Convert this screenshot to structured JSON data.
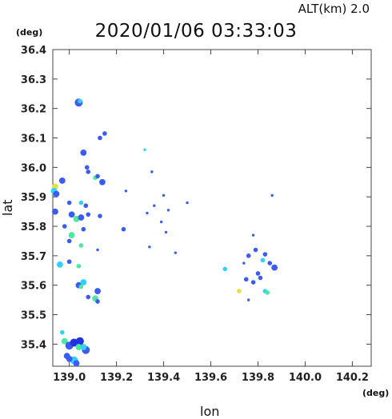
{
  "header": {
    "altitude_label": "ALT(km)  2.0",
    "timestamp": "2020/01/06 03:33:03"
  },
  "axes": {
    "y_unit": "(deg)",
    "x_unit": "(deg)",
    "xlabel": "lon",
    "ylabel": "lat"
  },
  "chart_data": {
    "type": "scatter",
    "title": "2020/01/06 03:33:03",
    "xlabel": "lon",
    "ylabel": "lat",
    "xlim": [
      138.93,
      140.28
    ],
    "ylim": [
      35.325,
      36.4
    ],
    "x_ticks": [
      "139.0",
      "139.2",
      "139.4",
      "139.6",
      "139.8",
      "140.0",
      "140.2"
    ],
    "y_ticks": [
      "35.4",
      "35.5",
      "35.6",
      "35.7",
      "35.8",
      "35.9",
      "36.0",
      "36.1",
      "36.2",
      "36.3",
      "36.4"
    ],
    "grid": false,
    "colors": {
      "blue": "#3a5cf0",
      "dark_blue": "#2233dd",
      "cyan": "#30d0ff",
      "green": "#50e8a0",
      "yellow": "#e8e040"
    },
    "points": [
      {
        "lon": 139.04,
        "lat": 36.22,
        "c": "blue",
        "s": 4
      },
      {
        "lon": 139.045,
        "lat": 36.225,
        "c": "cyan",
        "s": 2
      },
      {
        "lon": 139.13,
        "lat": 36.1,
        "c": "blue",
        "s": 2
      },
      {
        "lon": 139.15,
        "lat": 36.115,
        "c": "blue",
        "s": 2
      },
      {
        "lon": 139.06,
        "lat": 36.05,
        "c": "blue",
        "s": 3
      },
      {
        "lon": 139.32,
        "lat": 36.06,
        "c": "cyan",
        "s": 1
      },
      {
        "lon": 139.075,
        "lat": 36.0,
        "c": "blue",
        "s": 2
      },
      {
        "lon": 139.08,
        "lat": 35.985,
        "c": "blue",
        "s": 2
      },
      {
        "lon": 139.11,
        "lat": 35.965,
        "c": "green",
        "s": 2
      },
      {
        "lon": 139.12,
        "lat": 35.97,
        "c": "blue",
        "s": 2
      },
      {
        "lon": 139.14,
        "lat": 35.95,
        "c": "blue",
        "s": 3
      },
      {
        "lon": 139.35,
        "lat": 35.985,
        "c": "blue",
        "s": 1
      },
      {
        "lon": 138.97,
        "lat": 35.955,
        "c": "blue",
        "s": 3
      },
      {
        "lon": 138.94,
        "lat": 35.935,
        "c": "yellow",
        "s": 3
      },
      {
        "lon": 138.935,
        "lat": 35.92,
        "c": "cyan",
        "s": 3
      },
      {
        "lon": 138.945,
        "lat": 35.91,
        "c": "blue",
        "s": 3
      },
      {
        "lon": 138.94,
        "lat": 35.85,
        "c": "blue",
        "s": 3
      },
      {
        "lon": 139.0,
        "lat": 35.88,
        "c": "blue",
        "s": 2
      },
      {
        "lon": 139.05,
        "lat": 35.88,
        "c": "cyan",
        "s": 2
      },
      {
        "lon": 139.07,
        "lat": 35.87,
        "c": "blue",
        "s": 2
      },
      {
        "lon": 139.24,
        "lat": 35.92,
        "c": "blue",
        "s": 1
      },
      {
        "lon": 139.4,
        "lat": 35.905,
        "c": "blue",
        "s": 1
      },
      {
        "lon": 139.5,
        "lat": 35.88,
        "c": "blue",
        "s": 1
      },
      {
        "lon": 139.86,
        "lat": 35.905,
        "c": "blue",
        "s": 1
      },
      {
        "lon": 139.01,
        "lat": 35.84,
        "c": "blue",
        "s": 3
      },
      {
        "lon": 139.03,
        "lat": 35.825,
        "c": "green",
        "s": 3
      },
      {
        "lon": 139.05,
        "lat": 35.83,
        "c": "blue",
        "s": 3
      },
      {
        "lon": 139.08,
        "lat": 35.84,
        "c": "blue",
        "s": 2
      },
      {
        "lon": 139.13,
        "lat": 35.835,
        "c": "blue",
        "s": 2
      },
      {
        "lon": 138.98,
        "lat": 35.8,
        "c": "blue",
        "s": 2
      },
      {
        "lon": 139.01,
        "lat": 35.77,
        "c": "green",
        "s": 3
      },
      {
        "lon": 139.06,
        "lat": 35.79,
        "c": "blue",
        "s": 2
      },
      {
        "lon": 139.23,
        "lat": 35.79,
        "c": "blue",
        "s": 2
      },
      {
        "lon": 139.33,
        "lat": 35.845,
        "c": "blue",
        "s": 1
      },
      {
        "lon": 139.36,
        "lat": 35.87,
        "c": "blue",
        "s": 1
      },
      {
        "lon": 139.39,
        "lat": 35.815,
        "c": "blue",
        "s": 1
      },
      {
        "lon": 139.42,
        "lat": 35.855,
        "c": "blue",
        "s": 1
      },
      {
        "lon": 139.41,
        "lat": 35.78,
        "c": "blue",
        "s": 1
      },
      {
        "lon": 139.0,
        "lat": 35.75,
        "c": "blue",
        "s": 2
      },
      {
        "lon": 139.05,
        "lat": 35.735,
        "c": "green",
        "s": 2
      },
      {
        "lon": 139.12,
        "lat": 35.72,
        "c": "blue",
        "s": 1
      },
      {
        "lon": 139.34,
        "lat": 35.73,
        "c": "blue",
        "s": 1
      },
      {
        "lon": 139.78,
        "lat": 35.77,
        "c": "blue",
        "s": 1
      },
      {
        "lon": 138.96,
        "lat": 35.67,
        "c": "cyan",
        "s": 3
      },
      {
        "lon": 139.0,
        "lat": 35.68,
        "c": "blue",
        "s": 2
      },
      {
        "lon": 139.04,
        "lat": 35.665,
        "c": "green",
        "s": 2
      },
      {
        "lon": 139.45,
        "lat": 35.71,
        "c": "blue",
        "s": 1
      },
      {
        "lon": 139.66,
        "lat": 35.655,
        "c": "cyan",
        "s": 2
      },
      {
        "lon": 139.74,
        "lat": 35.675,
        "c": "blue",
        "s": 1
      },
      {
        "lon": 139.76,
        "lat": 35.7,
        "c": "blue",
        "s": 2
      },
      {
        "lon": 139.79,
        "lat": 35.72,
        "c": "blue",
        "s": 2
      },
      {
        "lon": 139.82,
        "lat": 35.685,
        "c": "cyan",
        "s": 2
      },
      {
        "lon": 139.85,
        "lat": 35.675,
        "c": "blue",
        "s": 2
      },
      {
        "lon": 139.87,
        "lat": 35.66,
        "c": "blue",
        "s": 3
      },
      {
        "lon": 139.83,
        "lat": 35.705,
        "c": "blue",
        "s": 2
      },
      {
        "lon": 139.8,
        "lat": 35.64,
        "c": "blue",
        "s": 2
      },
      {
        "lon": 139.75,
        "lat": 35.62,
        "c": "blue",
        "s": 2
      },
      {
        "lon": 139.78,
        "lat": 35.61,
        "c": "blue",
        "s": 2
      },
      {
        "lon": 139.81,
        "lat": 35.625,
        "c": "blue",
        "s": 2
      },
      {
        "lon": 139.72,
        "lat": 35.58,
        "c": "yellow",
        "s": 2
      },
      {
        "lon": 139.83,
        "lat": 35.58,
        "c": "cyan",
        "s": 2
      },
      {
        "lon": 139.84,
        "lat": 35.575,
        "c": "green",
        "s": 2
      },
      {
        "lon": 139.76,
        "lat": 35.55,
        "c": "blue",
        "s": 1
      },
      {
        "lon": 139.04,
        "lat": 35.6,
        "c": "blue",
        "s": 3
      },
      {
        "lon": 139.06,
        "lat": 35.61,
        "c": "cyan",
        "s": 3
      },
      {
        "lon": 139.05,
        "lat": 35.595,
        "c": "green",
        "s": 2
      },
      {
        "lon": 139.12,
        "lat": 35.58,
        "c": "blue",
        "s": 3
      },
      {
        "lon": 139.08,
        "lat": 35.56,
        "c": "blue",
        "s": 2
      },
      {
        "lon": 139.11,
        "lat": 35.555,
        "c": "green",
        "s": 3
      },
      {
        "lon": 139.12,
        "lat": 35.545,
        "c": "blue",
        "s": 2
      },
      {
        "lon": 138.97,
        "lat": 35.44,
        "c": "cyan",
        "s": 2
      },
      {
        "lon": 138.98,
        "lat": 35.41,
        "c": "green",
        "s": 3
      },
      {
        "lon": 139.0,
        "lat": 35.395,
        "c": "blue",
        "s": 4
      },
      {
        "lon": 139.02,
        "lat": 35.405,
        "c": "dark_blue",
        "s": 4
      },
      {
        "lon": 139.045,
        "lat": 35.41,
        "c": "dark_blue",
        "s": 4
      },
      {
        "lon": 139.04,
        "lat": 35.39,
        "c": "green",
        "s": 3
      },
      {
        "lon": 139.07,
        "lat": 35.38,
        "c": "blue",
        "s": 4
      },
      {
        "lon": 139.06,
        "lat": 35.39,
        "c": "cyan",
        "s": 3
      },
      {
        "lon": 138.99,
        "lat": 35.36,
        "c": "blue",
        "s": 3
      },
      {
        "lon": 139.02,
        "lat": 35.345,
        "c": "cyan",
        "s": 4
      },
      {
        "lon": 139.0,
        "lat": 35.35,
        "c": "blue",
        "s": 3
      },
      {
        "lon": 139.03,
        "lat": 35.335,
        "c": "blue",
        "s": 3
      }
    ]
  }
}
